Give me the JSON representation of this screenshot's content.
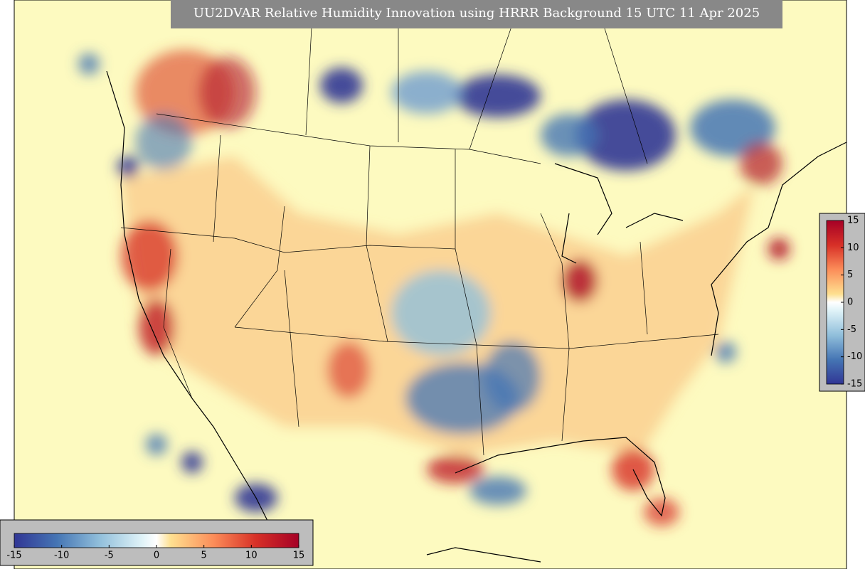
{
  "map": {
    "title": "UU2DVAR Relative Humidity Innovation using HRRR Background 15 UTC 11 Apr 2025",
    "colorbars": [
      {
        "orientation": "horizontal",
        "lim": [
          -15,
          15
        ],
        "ticks": [
          -15,
          -10,
          -5,
          0,
          5,
          10,
          15
        ]
      },
      {
        "orientation": "vertical",
        "lim": [
          -15,
          15
        ],
        "ticks": [
          -15,
          -10,
          -5,
          0,
          5,
          10,
          15
        ]
      }
    ]
  }
}
